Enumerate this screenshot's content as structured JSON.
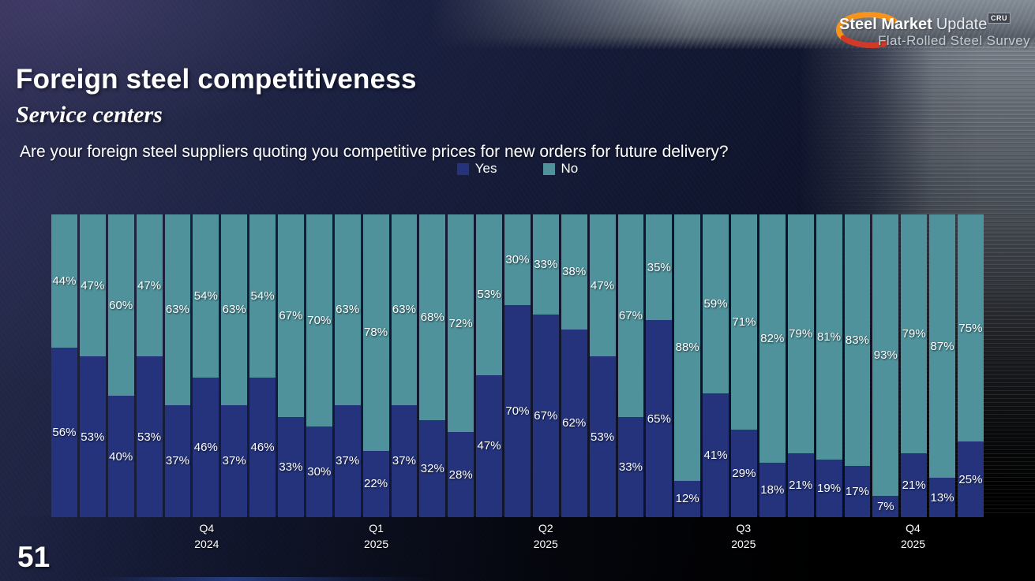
{
  "slide": {
    "page_number": "51"
  },
  "logo": {
    "brand_bold": "Steel Market",
    "brand_light": "Update",
    "tagline": "Flat-Rolled Steel Survey",
    "badge": "CRU"
  },
  "header": {
    "title": "Foreign steel competitiveness",
    "subtitle": "Service centers",
    "question": "Are your foreign steel suppliers quoting you competitive prices for new orders for future delivery?"
  },
  "legend": {
    "items": [
      {
        "label": "Yes",
        "color": "#24337b"
      },
      {
        "label": "No",
        "color": "#4f929b"
      }
    ]
  },
  "chart_data": {
    "type": "bar",
    "subtype": "100%-stacked-column",
    "title": "Are your foreign steel suppliers quoting you competitive prices for new orders for future delivery?",
    "value_suffix": "%",
    "ylim": [
      0,
      100
    ],
    "grid": false,
    "legend_position": "top-center",
    "bar_count": 33,
    "series": [
      {
        "name": "Yes",
        "color": "#24337b",
        "values": [
          56,
          53,
          40,
          53,
          37,
          46,
          37,
          46,
          33,
          30,
          37,
          22,
          37,
          32,
          28,
          47,
          70,
          67,
          62,
          53,
          33,
          65,
          12,
          41,
          29,
          18,
          21,
          19,
          17,
          7,
          21,
          13,
          25
        ]
      },
      {
        "name": "No",
        "color": "#4f929b",
        "values": [
          44,
          47,
          60,
          47,
          63,
          54,
          63,
          54,
          67,
          70,
          63,
          78,
          63,
          68,
          72,
          53,
          30,
          33,
          38,
          47,
          67,
          35,
          88,
          59,
          71,
          82,
          79,
          81,
          83,
          93,
          79,
          87,
          75
        ]
      }
    ],
    "x_axis": {
      "quarter_labels": [
        {
          "line1": "Q4",
          "line2": "2024",
          "bar_index": 5
        },
        {
          "line1": "Q1",
          "line2": "2025",
          "bar_index": 11
        },
        {
          "line1": "Q2",
          "line2": "2025",
          "bar_index": 17
        },
        {
          "line1": "Q3",
          "line2": "2025",
          "bar_index": 24
        },
        {
          "line1": "Q4",
          "line2": "2025",
          "bar_index": 30
        }
      ]
    }
  }
}
